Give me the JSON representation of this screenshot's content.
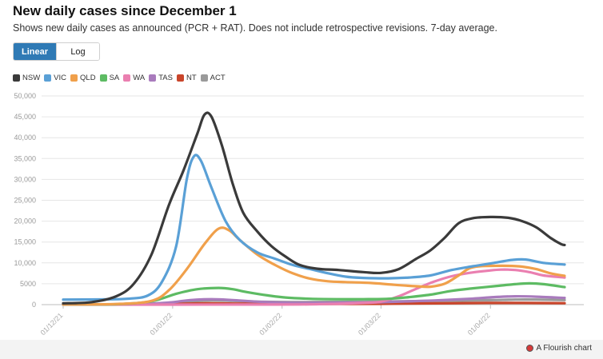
{
  "chart_data": {
    "type": "line",
    "title": "New daily cases since December 1",
    "subtitle": "Shows new daily cases as announced (PCR + RAT). Does not include retrospective revisions. 7-day average.",
    "scale_options": [
      "Linear",
      "Log"
    ],
    "selected_scale": "Linear",
    "xlabel": "",
    "ylabel": "",
    "ylim": [
      0,
      50000
    ],
    "y_ticks": [
      0,
      5000,
      10000,
      15000,
      20000,
      25000,
      30000,
      35000,
      40000,
      45000,
      50000
    ],
    "y_tick_labels": [
      "0",
      "5000",
      "10,000",
      "15,000",
      "20,000",
      "25,000",
      "30,000",
      "35,000",
      "40,000",
      "45,000",
      "50,000"
    ],
    "x_range_days": [
      0,
      154
    ],
    "x_ticks": [
      {
        "day": 0,
        "label": "01/12/21"
      },
      {
        "day": 31,
        "label": "01/01/22"
      },
      {
        "day": 62,
        "label": "01/02/22"
      },
      {
        "day": 90,
        "label": "01/03/22"
      },
      {
        "day": 121,
        "label": "01/04/22"
      }
    ],
    "grid": true,
    "series": [
      {
        "name": "NSW",
        "color": "#3a3a3a",
        "points": [
          [
            0,
            300
          ],
          [
            8,
            600
          ],
          [
            15,
            2000
          ],
          [
            20,
            5000
          ],
          [
            25,
            12000
          ],
          [
            30,
            24000
          ],
          [
            34,
            32000
          ],
          [
            38,
            41000
          ],
          [
            40,
            45500
          ],
          [
            42,
            45000
          ],
          [
            45,
            38000
          ],
          [
            48,
            29000
          ],
          [
            51,
            22000
          ],
          [
            55,
            17500
          ],
          [
            59,
            14000
          ],
          [
            63,
            11500
          ],
          [
            67,
            9500
          ],
          [
            72,
            8600
          ],
          [
            78,
            8300
          ],
          [
            85,
            7800
          ],
          [
            90,
            7600
          ],
          [
            95,
            8500
          ],
          [
            100,
            11000
          ],
          [
            104,
            13000
          ],
          [
            108,
            16000
          ],
          [
            112,
            19500
          ],
          [
            116,
            20700
          ],
          [
            121,
            21000
          ],
          [
            126,
            20800
          ],
          [
            130,
            20000
          ],
          [
            134,
            18500
          ],
          [
            138,
            16000
          ],
          [
            141,
            14500
          ],
          [
            142,
            14300
          ]
        ]
      },
      {
        "name": "VIC",
        "color": "#5aa0d6",
        "points": [
          [
            0,
            1200
          ],
          [
            10,
            1250
          ],
          [
            18,
            1400
          ],
          [
            24,
            2200
          ],
          [
            28,
            5500
          ],
          [
            32,
            14000
          ],
          [
            35,
            30000
          ],
          [
            37,
            35500
          ],
          [
            39,
            34500
          ],
          [
            42,
            28000
          ],
          [
            46,
            20000
          ],
          [
            50,
            15500
          ],
          [
            55,
            12500
          ],
          [
            60,
            11000
          ],
          [
            65,
            9500
          ],
          [
            70,
            8500
          ],
          [
            75,
            7500
          ],
          [
            80,
            6700
          ],
          [
            85,
            6400
          ],
          [
            92,
            6300
          ],
          [
            98,
            6500
          ],
          [
            104,
            7000
          ],
          [
            110,
            8300
          ],
          [
            116,
            9200
          ],
          [
            122,
            10000
          ],
          [
            127,
            10700
          ],
          [
            131,
            10800
          ],
          [
            136,
            10000
          ],
          [
            142,
            9600
          ]
        ]
      },
      {
        "name": "QLD",
        "color": "#f0a04b",
        "points": [
          [
            0,
            60
          ],
          [
            15,
            150
          ],
          [
            25,
            900
          ],
          [
            30,
            3500
          ],
          [
            35,
            8500
          ],
          [
            40,
            14500
          ],
          [
            44,
            18200
          ],
          [
            47,
            17800
          ],
          [
            50,
            15500
          ],
          [
            55,
            12000
          ],
          [
            60,
            9500
          ],
          [
            65,
            7500
          ],
          [
            70,
            6200
          ],
          [
            75,
            5600
          ],
          [
            80,
            5400
          ],
          [
            87,
            5200
          ],
          [
            93,
            4800
          ],
          [
            100,
            4400
          ],
          [
            104,
            4300
          ],
          [
            108,
            5000
          ],
          [
            112,
            7000
          ],
          [
            115,
            8700
          ],
          [
            118,
            9200
          ],
          [
            122,
            9300
          ],
          [
            126,
            9300
          ],
          [
            130,
            9100
          ],
          [
            134,
            8500
          ],
          [
            138,
            7500
          ],
          [
            142,
            6900
          ]
        ]
      },
      {
        "name": "SA",
        "color": "#5dbb63",
        "points": [
          [
            0,
            40
          ],
          [
            15,
            100
          ],
          [
            25,
            800
          ],
          [
            32,
            2600
          ],
          [
            38,
            3700
          ],
          [
            44,
            4000
          ],
          [
            48,
            3700
          ],
          [
            52,
            3000
          ],
          [
            58,
            2200
          ],
          [
            63,
            1700
          ],
          [
            70,
            1400
          ],
          [
            78,
            1300
          ],
          [
            85,
            1300
          ],
          [
            92,
            1400
          ],
          [
            98,
            1800
          ],
          [
            104,
            2400
          ],
          [
            110,
            3300
          ],
          [
            116,
            3900
          ],
          [
            122,
            4400
          ],
          [
            128,
            4900
          ],
          [
            132,
            5100
          ],
          [
            136,
            4900
          ],
          [
            142,
            4200
          ]
        ]
      },
      {
        "name": "WA",
        "color": "#ea7fb0",
        "points": [
          [
            0,
            0
          ],
          [
            60,
            20
          ],
          [
            75,
            150
          ],
          [
            85,
            400
          ],
          [
            90,
            700
          ],
          [
            95,
            2000
          ],
          [
            100,
            3800
          ],
          [
            105,
            5500
          ],
          [
            110,
            6800
          ],
          [
            115,
            7600
          ],
          [
            120,
            8100
          ],
          [
            124,
            8400
          ],
          [
            128,
            8300
          ],
          [
            132,
            7800
          ],
          [
            136,
            7000
          ],
          [
            142,
            6500
          ]
        ]
      },
      {
        "name": "TAS",
        "color": "#a97bbd",
        "points": [
          [
            0,
            20
          ],
          [
            20,
            80
          ],
          [
            30,
            500
          ],
          [
            36,
            1100
          ],
          [
            42,
            1300
          ],
          [
            48,
            1100
          ],
          [
            55,
            700
          ],
          [
            65,
            450
          ],
          [
            75,
            450
          ],
          [
            85,
            500
          ],
          [
            95,
            700
          ],
          [
            105,
            1000
          ],
          [
            115,
            1400
          ],
          [
            122,
            1800
          ],
          [
            128,
            2000
          ],
          [
            134,
            1900
          ],
          [
            142,
            1600
          ]
        ]
      },
      {
        "name": "NT",
        "color": "#c9452b",
        "points": [
          [
            0,
            10
          ],
          [
            20,
            30
          ],
          [
            30,
            150
          ],
          [
            40,
            300
          ],
          [
            50,
            250
          ],
          [
            60,
            150
          ],
          [
            75,
            150
          ],
          [
            90,
            200
          ],
          [
            105,
            300
          ],
          [
            120,
            400
          ],
          [
            130,
            400
          ],
          [
            142,
            350
          ]
        ]
      },
      {
        "name": "ACT",
        "color": "#9a9a9a",
        "points": [
          [
            0,
            20
          ],
          [
            20,
            60
          ],
          [
            30,
            400
          ],
          [
            36,
            800
          ],
          [
            42,
            1000
          ],
          [
            48,
            900
          ],
          [
            55,
            700
          ],
          [
            65,
            600
          ],
          [
            75,
            650
          ],
          [
            85,
            700
          ],
          [
            95,
            800
          ],
          [
            105,
            900
          ],
          [
            115,
            1000
          ],
          [
            122,
            1100
          ],
          [
            128,
            1200
          ],
          [
            134,
            1200
          ],
          [
            142,
            1100
          ]
        ]
      }
    ]
  },
  "footer": {
    "credit": "A Flourish chart"
  }
}
